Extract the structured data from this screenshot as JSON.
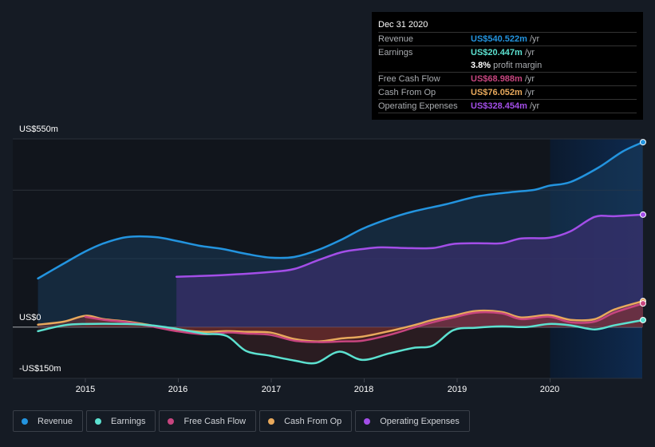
{
  "tooltip": {
    "date": "Dec 31 2020",
    "rows": [
      {
        "label": "Revenue",
        "value": "US$540.522m",
        "unit": "/yr",
        "color": "#2394df"
      },
      {
        "label": "Earnings",
        "value": "US$20.447m",
        "unit": "/yr",
        "color": "#5ce1d0"
      },
      {
        "label": "",
        "value": "3.8%",
        "unit": "profit margin",
        "color": "#ffffff"
      },
      {
        "label": "Free Cash Flow",
        "value": "US$68.988m",
        "unit": "/yr",
        "color": "#c7457f"
      },
      {
        "label": "Cash From Op",
        "value": "US$76.052m",
        "unit": "/yr",
        "color": "#e8a95c"
      },
      {
        "label": "Operating Expenses",
        "value": "US$328.454m",
        "unit": "/yr",
        "color": "#a34ee8"
      }
    ]
  },
  "legend": [
    {
      "label": "Revenue",
      "color": "#2394df"
    },
    {
      "label": "Earnings",
      "color": "#5ce1d0"
    },
    {
      "label": "Free Cash Flow",
      "color": "#c7457f"
    },
    {
      "label": "Cash From Op",
      "color": "#e8a95c"
    },
    {
      "label": "Operating Expenses",
      "color": "#a34ee8"
    }
  ],
  "chart_data": {
    "type": "area",
    "title": "",
    "xlabel": "",
    "ylabel": "",
    "x_ticks": [
      "2015",
      "2016",
      "2017",
      "2018",
      "2019",
      "2020"
    ],
    "x_tick_values": [
      2015,
      2016,
      2017,
      2018,
      2019,
      2020
    ],
    "xlim": [
      2014.49,
      2021.0
    ],
    "y_ticks": [
      "US$550m",
      "US$0",
      "-US$150m"
    ],
    "y_tick_values": [
      550,
      0,
      -150
    ],
    "y_gridlines": [
      550,
      400,
      200,
      0,
      -150
    ],
    "ylim": [
      -150,
      550
    ],
    "units": "US$ millions",
    "highlight_range": [
      2020.0,
      2021.0
    ],
    "series": [
      {
        "name": "Revenue",
        "color": "#2394df",
        "x": [
          2014.49,
          2014.77,
          2015.0,
          2015.2,
          2015.45,
          2015.75,
          2015.98,
          2016.22,
          2016.48,
          2016.73,
          2016.99,
          2017.25,
          2017.51,
          2017.76,
          2017.98,
          2018.27,
          2018.53,
          2018.88,
          2019.22,
          2019.57,
          2019.83,
          2019.99,
          2020.22,
          2020.52,
          2020.78,
          2021.0
        ],
        "y": [
          142,
          186,
          221,
          245,
          263,
          263,
          252,
          238,
          228,
          214,
          203,
          205,
          226,
          256,
          287,
          317,
          338,
          359,
          382,
          394,
          401,
          413,
          424,
          466,
          513,
          540.5
        ]
      },
      {
        "name": "Operating Expenses",
        "color": "#a34ee8",
        "x": [
          2015.98,
          2016.48,
          2016.99,
          2017.25,
          2017.51,
          2017.76,
          2017.98,
          2018.18,
          2018.44,
          2018.74,
          2018.96,
          2019.22,
          2019.48,
          2019.69,
          2019.99,
          2020.22,
          2020.48,
          2020.69,
          2021.0
        ],
        "y": [
          147,
          152,
          161,
          170,
          196,
          219,
          228,
          233,
          231,
          231,
          243,
          245,
          245,
          259,
          261,
          280,
          322,
          324,
          328.5
        ]
      },
      {
        "name": "Cash From Op",
        "color": "#e8a95c",
        "x": [
          2014.49,
          2014.77,
          2015.0,
          2015.2,
          2015.45,
          2015.71,
          2015.98,
          2016.27,
          2016.52,
          2016.73,
          2016.99,
          2017.25,
          2017.51,
          2017.76,
          2017.98,
          2018.27,
          2018.53,
          2018.74,
          2018.96,
          2019.2,
          2019.48,
          2019.69,
          2019.99,
          2020.22,
          2020.48,
          2020.69,
          2021.0
        ],
        "y": [
          7,
          16,
          33,
          23,
          16,
          5,
          -7,
          -14,
          -12,
          -14,
          -16,
          -35,
          -42,
          -33,
          -28,
          -12,
          5,
          21,
          33,
          47,
          44,
          28,
          35,
          21,
          23,
          51,
          76
        ]
      },
      {
        "name": "Free Cash Flow",
        "color": "#c7457f",
        "x": [
          2015.0,
          2015.2,
          2015.45,
          2015.71,
          2015.98,
          2016.27,
          2016.52,
          2016.73,
          2016.99,
          2017.25,
          2017.51,
          2017.76,
          2017.98,
          2018.27,
          2018.53,
          2018.74,
          2018.96,
          2019.2,
          2019.48,
          2019.69,
          2019.99,
          2020.22,
          2020.48,
          2020.69,
          2021.0
        ],
        "y": [
          30,
          21,
          14,
          2,
          -12,
          -21,
          -16,
          -19,
          -23,
          -40,
          -44,
          -42,
          -40,
          -23,
          -2,
          14,
          28,
          42,
          40,
          23,
          30,
          14,
          16,
          42,
          69
        ]
      },
      {
        "name": "Earnings",
        "color": "#5ce1d0",
        "x": [
          2014.49,
          2014.77,
          2015.0,
          2015.45,
          2015.71,
          2015.98,
          2016.27,
          2016.52,
          2016.73,
          2016.99,
          2017.25,
          2017.48,
          2017.73,
          2017.98,
          2018.27,
          2018.53,
          2018.74,
          2018.96,
          2019.2,
          2019.48,
          2019.74,
          2019.99,
          2020.22,
          2020.48,
          2020.69,
          2021.0
        ],
        "y": [
          -12,
          5,
          9,
          9,
          5,
          -5,
          -19,
          -26,
          -70,
          -84,
          -98,
          -105,
          -72,
          -96,
          -77,
          -61,
          -54,
          -9,
          -2,
          2,
          0,
          9,
          5,
          -7,
          5,
          20.4
        ]
      }
    ]
  }
}
